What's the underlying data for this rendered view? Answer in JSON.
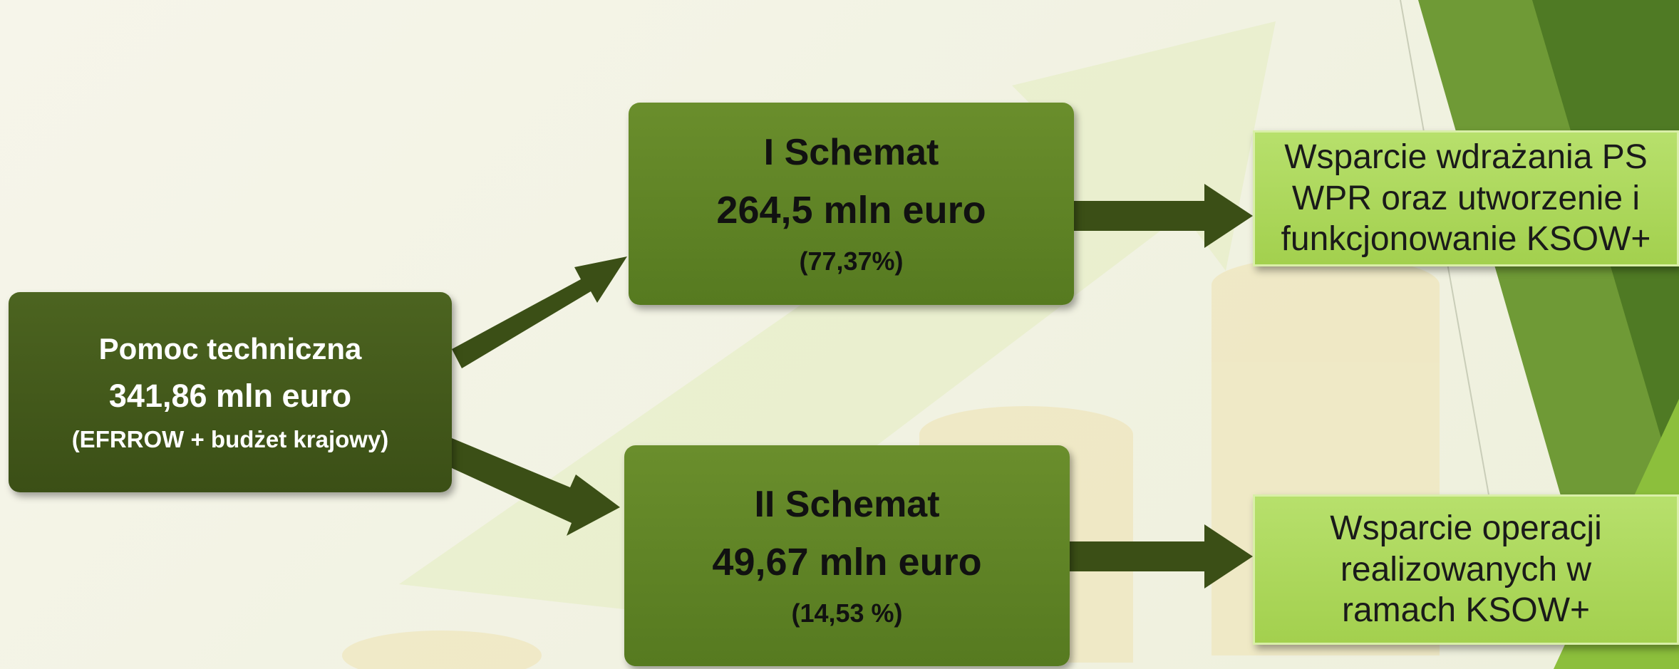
{
  "source": {
    "title": "Pomoc techniczna",
    "amount": "341,86 mln euro",
    "note": "(EFRROW + budżet krajowy)"
  },
  "schemes": [
    {
      "title": "I Schemat",
      "amount": "264,5 mln euro",
      "share": "(77,37%)"
    },
    {
      "title": "II Schemat",
      "amount": "49,67 mln euro",
      "share": "(14,53 %)"
    }
  ],
  "outcomes": [
    {
      "text": "Wsparcie wdrażania PS WPR oraz utworzenie i funkcjonowanie KSOW+"
    },
    {
      "text": "Wsparcie operacji realizowanych w ramach KSOW+"
    }
  ]
}
